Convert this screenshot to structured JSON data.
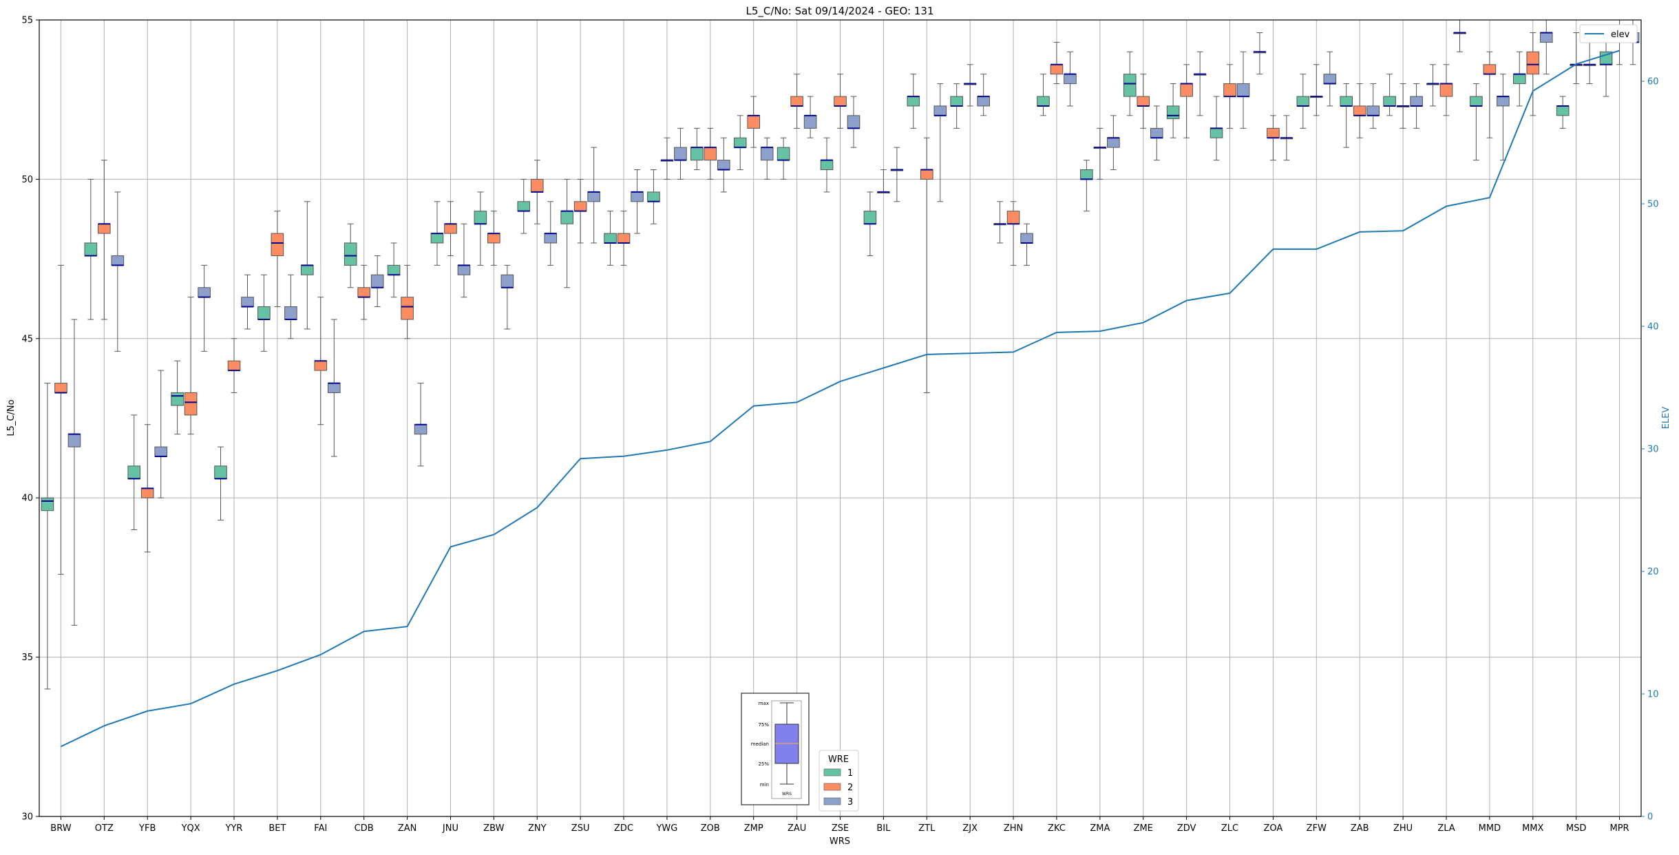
{
  "chart_data": {
    "type": "boxplot",
    "title": "L5_C/No: Sat 09/14/2024 - GEO: 131",
    "xlabel": "WRS",
    "ylabel": "L5_C/No",
    "y2label": "ELEV",
    "ylim": [
      30,
      55
    ],
    "y2lim": [
      0,
      65
    ],
    "yticks": [
      30,
      35,
      40,
      45,
      50,
      55
    ],
    "y2ticks": [
      0,
      10,
      20,
      30,
      40,
      50,
      60
    ],
    "grid": true,
    "categories": [
      "BRW",
      "OTZ",
      "YFB",
      "YQX",
      "YYR",
      "BET",
      "FAI",
      "CDB",
      "ZAN",
      "JNU",
      "ZBW",
      "ZNY",
      "ZSU",
      "ZDC",
      "YWG",
      "ZOB",
      "ZMP",
      "ZAU",
      "ZSE",
      "BIL",
      "ZTL",
      "ZJX",
      "ZHN",
      "ZKC",
      "ZMA",
      "ZME",
      "ZDV",
      "ZLC",
      "ZOA",
      "ZFW",
      "ZAB",
      "ZHU",
      "ZLA",
      "MMD",
      "MMX",
      "MSD",
      "MPR"
    ],
    "elev": [
      5.7,
      7.4,
      8.6,
      9.2,
      10.8,
      11.9,
      13.2,
      15.1,
      15.5,
      22.0,
      23.0,
      25.2,
      29.2,
      29.4,
      29.9,
      30.6,
      33.5,
      33.8,
      35.5,
      36.6,
      37.7,
      37.8,
      37.9,
      39.5,
      39.6,
      40.3,
      42.1,
      42.7,
      46.3,
      46.3,
      47.7,
      47.8,
      49.8,
      50.5,
      59.2,
      61.4,
      62.5
    ],
    "wre_colors": {
      "1": "#66c2a5",
      "2": "#fc8d62",
      "3": "#8da0cb"
    },
    "elev_color": "#1f77b4",
    "legend_entries": [
      {
        "label": "1",
        "color": "#66c2a5"
      },
      {
        "label": "2",
        "color": "#fc8d62"
      },
      {
        "label": "3",
        "color": "#8da0cb"
      }
    ],
    "legend_title": "WRE",
    "elev_legend_label": "elev",
    "inset_legend": {
      "labels": [
        "max",
        "75%",
        "median",
        "25%",
        "min"
      ],
      "xlabel": "WRS"
    },
    "boxes": [
      {
        "cat": "BRW",
        "wre": "1",
        "min": 34.0,
        "q1": 39.6,
        "med": 39.9,
        "q3": 40.0,
        "max": 43.6
      },
      {
        "cat": "BRW",
        "wre": "2",
        "min": 37.6,
        "q1": 43.3,
        "med": 43.3,
        "q3": 43.6,
        "max": 47.3
      },
      {
        "cat": "BRW",
        "wre": "3",
        "min": 36.0,
        "q1": 41.6,
        "med": 42.0,
        "q3": 42.0,
        "max": 45.6
      },
      {
        "cat": "OTZ",
        "wre": "1",
        "min": 45.6,
        "q1": 47.6,
        "med": 47.6,
        "q3": 48.0,
        "max": 50.0
      },
      {
        "cat": "OTZ",
        "wre": "2",
        "min": 45.6,
        "q1": 48.3,
        "med": 48.6,
        "q3": 48.6,
        "max": 50.6
      },
      {
        "cat": "OTZ",
        "wre": "3",
        "min": 44.6,
        "q1": 47.3,
        "med": 47.3,
        "q3": 47.6,
        "max": 49.6
      },
      {
        "cat": "YFB",
        "wre": "1",
        "min": 39.0,
        "q1": 40.6,
        "med": 40.6,
        "q3": 41.0,
        "max": 42.6
      },
      {
        "cat": "YFB",
        "wre": "2",
        "min": 38.3,
        "q1": 40.0,
        "med": 40.3,
        "q3": 40.3,
        "max": 42.3
      },
      {
        "cat": "YFB",
        "wre": "3",
        "min": 40.0,
        "q1": 41.3,
        "med": 41.3,
        "q3": 41.6,
        "max": 44.0
      },
      {
        "cat": "YQX",
        "wre": "1",
        "min": 42.0,
        "q1": 42.9,
        "med": 43.2,
        "q3": 43.3,
        "max": 44.3
      },
      {
        "cat": "YQX",
        "wre": "2",
        "min": 42.0,
        "q1": 42.6,
        "med": 43.0,
        "q3": 43.3,
        "max": 46.3
      },
      {
        "cat": "YQX",
        "wre": "3",
        "min": 44.6,
        "q1": 46.3,
        "med": 46.3,
        "q3": 46.6,
        "max": 47.3
      },
      {
        "cat": "YYR",
        "wre": "1",
        "min": 39.3,
        "q1": 40.6,
        "med": 40.6,
        "q3": 41.0,
        "max": 41.6
      },
      {
        "cat": "YYR",
        "wre": "2",
        "min": 43.3,
        "q1": 44.0,
        "med": 44.0,
        "q3": 44.3,
        "max": 45.0
      },
      {
        "cat": "YYR",
        "wre": "3",
        "min": 45.3,
        "q1": 46.0,
        "med": 46.0,
        "q3": 46.3,
        "max": 47.0
      },
      {
        "cat": "BET",
        "wre": "1",
        "min": 44.6,
        "q1": 45.6,
        "med": 45.6,
        "q3": 46.0,
        "max": 47.0
      },
      {
        "cat": "BET",
        "wre": "2",
        "min": 46.0,
        "q1": 47.6,
        "med": 48.0,
        "q3": 48.3,
        "max": 49.0
      },
      {
        "cat": "BET",
        "wre": "3",
        "min": 45.0,
        "q1": 45.6,
        "med": 45.6,
        "q3": 46.0,
        "max": 47.0
      },
      {
        "cat": "FAI",
        "wre": "1",
        "min": 45.3,
        "q1": 47.0,
        "med": 47.3,
        "q3": 47.3,
        "max": 49.3
      },
      {
        "cat": "FAI",
        "wre": "2",
        "min": 42.3,
        "q1": 44.0,
        "med": 44.3,
        "q3": 44.3,
        "max": 46.3
      },
      {
        "cat": "FAI",
        "wre": "3",
        "min": 41.3,
        "q1": 43.3,
        "med": 43.6,
        "q3": 43.6,
        "max": 45.6
      },
      {
        "cat": "CDB",
        "wre": "1",
        "min": 46.6,
        "q1": 47.3,
        "med": 47.6,
        "q3": 48.0,
        "max": 48.6
      },
      {
        "cat": "CDB",
        "wre": "2",
        "min": 45.6,
        "q1": 46.3,
        "med": 46.3,
        "q3": 46.6,
        "max": 47.3
      },
      {
        "cat": "CDB",
        "wre": "3",
        "min": 46.0,
        "q1": 46.6,
        "med": 46.6,
        "q3": 47.0,
        "max": 47.6
      },
      {
        "cat": "ZAN",
        "wre": "1",
        "min": 46.3,
        "q1": 47.0,
        "med": 47.0,
        "q3": 47.3,
        "max": 48.0
      },
      {
        "cat": "ZAN",
        "wre": "2",
        "min": 45.0,
        "q1": 45.6,
        "med": 46.0,
        "q3": 46.3,
        "max": 47.3
      },
      {
        "cat": "ZAN",
        "wre": "3",
        "min": 41.0,
        "q1": 42.0,
        "med": 42.3,
        "q3": 42.3,
        "max": 43.6
      },
      {
        "cat": "JNU",
        "wre": "1",
        "min": 47.3,
        "q1": 48.0,
        "med": 48.3,
        "q3": 48.3,
        "max": 49.3
      },
      {
        "cat": "JNU",
        "wre": "2",
        "min": 47.6,
        "q1": 48.3,
        "med": 48.6,
        "q3": 48.6,
        "max": 49.3
      },
      {
        "cat": "JNU",
        "wre": "3",
        "min": 46.3,
        "q1": 47.0,
        "med": 47.3,
        "q3": 47.3,
        "max": 48.6
      },
      {
        "cat": "ZBW",
        "wre": "1",
        "min": 47.3,
        "q1": 48.6,
        "med": 48.6,
        "q3": 49.0,
        "max": 49.6
      },
      {
        "cat": "ZBW",
        "wre": "2",
        "min": 47.3,
        "q1": 48.0,
        "med": 48.3,
        "q3": 48.3,
        "max": 49.0
      },
      {
        "cat": "ZBW",
        "wre": "3",
        "min": 45.3,
        "q1": 46.6,
        "med": 46.6,
        "q3": 47.0,
        "max": 47.3
      },
      {
        "cat": "ZNY",
        "wre": "1",
        "min": 48.3,
        "q1": 49.0,
        "med": 49.0,
        "q3": 49.3,
        "max": 50.0
      },
      {
        "cat": "ZNY",
        "wre": "2",
        "min": 48.6,
        "q1": 49.6,
        "med": 49.6,
        "q3": 50.0,
        "max": 50.6
      },
      {
        "cat": "ZNY",
        "wre": "3",
        "min": 47.3,
        "q1": 48.0,
        "med": 48.3,
        "q3": 48.3,
        "max": 49.3
      },
      {
        "cat": "ZSU",
        "wre": "1",
        "min": 46.6,
        "q1": 48.6,
        "med": 49.0,
        "q3": 49.0,
        "max": 50.0
      },
      {
        "cat": "ZSU",
        "wre": "2",
        "min": 48.0,
        "q1": 49.0,
        "med": 49.0,
        "q3": 49.3,
        "max": 50.0
      },
      {
        "cat": "ZSU",
        "wre": "3",
        "min": 48.0,
        "q1": 49.3,
        "med": 49.6,
        "q3": 49.6,
        "max": 51.0
      },
      {
        "cat": "ZDC",
        "wre": "1",
        "min": 47.3,
        "q1": 48.0,
        "med": 48.0,
        "q3": 48.3,
        "max": 49.0
      },
      {
        "cat": "ZDC",
        "wre": "2",
        "min": 47.3,
        "q1": 48.0,
        "med": 48.0,
        "q3": 48.3,
        "max": 49.0
      },
      {
        "cat": "ZDC",
        "wre": "3",
        "min": 48.3,
        "q1": 49.3,
        "med": 49.6,
        "q3": 49.6,
        "max": 50.3
      },
      {
        "cat": "YWG",
        "wre": "1",
        "min": 48.6,
        "q1": 49.3,
        "med": 49.3,
        "q3": 49.6,
        "max": 50.3
      },
      {
        "cat": "YWG",
        "wre": "2",
        "min": 50.0,
        "q1": 50.6,
        "med": 50.6,
        "q3": 50.6,
        "max": 51.3
      },
      {
        "cat": "YWG",
        "wre": "3",
        "min": 50.0,
        "q1": 50.6,
        "med": 50.6,
        "q3": 51.0,
        "max": 51.6
      },
      {
        "cat": "ZOB",
        "wre": "1",
        "min": 50.3,
        "q1": 50.6,
        "med": 51.0,
        "q3": 51.0,
        "max": 51.6
      },
      {
        "cat": "ZOB",
        "wre": "2",
        "min": 50.0,
        "q1": 50.6,
        "med": 51.0,
        "q3": 51.0,
        "max": 51.6
      },
      {
        "cat": "ZOB",
        "wre": "3",
        "min": 49.6,
        "q1": 50.3,
        "med": 50.3,
        "q3": 50.6,
        "max": 51.3
      },
      {
        "cat": "ZMP",
        "wre": "1",
        "min": 50.3,
        "q1": 51.0,
        "med": 51.0,
        "q3": 51.3,
        "max": 52.0
      },
      {
        "cat": "ZMP",
        "wre": "2",
        "min": 51.0,
        "q1": 51.6,
        "med": 52.0,
        "q3": 52.0,
        "max": 52.6
      },
      {
        "cat": "ZMP",
        "wre": "3",
        "min": 50.0,
        "q1": 50.6,
        "med": 51.0,
        "q3": 51.0,
        "max": 51.3
      },
      {
        "cat": "ZAU",
        "wre": "1",
        "min": 50.0,
        "q1": 50.6,
        "med": 50.6,
        "q3": 51.0,
        "max": 51.3
      },
      {
        "cat": "ZAU",
        "wre": "2",
        "min": 51.6,
        "q1": 52.3,
        "med": 52.3,
        "q3": 52.6,
        "max": 53.3
      },
      {
        "cat": "ZAU",
        "wre": "3",
        "min": 51.3,
        "q1": 51.6,
        "med": 52.0,
        "q3": 52.0,
        "max": 52.6
      },
      {
        "cat": "ZSE",
        "wre": "1",
        "min": 49.6,
        "q1": 50.3,
        "med": 50.6,
        "q3": 50.6,
        "max": 51.3
      },
      {
        "cat": "ZSE",
        "wre": "2",
        "min": 51.6,
        "q1": 52.3,
        "med": 52.3,
        "q3": 52.6,
        "max": 53.3
      },
      {
        "cat": "ZSE",
        "wre": "3",
        "min": 51.0,
        "q1": 51.6,
        "med": 51.6,
        "q3": 52.0,
        "max": 52.6
      },
      {
        "cat": "BIL",
        "wre": "1",
        "min": 47.6,
        "q1": 48.6,
        "med": 48.6,
        "q3": 49.0,
        "max": 49.6
      },
      {
        "cat": "BIL",
        "wre": "2",
        "min": 49.6,
        "q1": 49.6,
        "med": 49.6,
        "q3": 49.6,
        "max": 50.3
      },
      {
        "cat": "BIL",
        "wre": "3",
        "min": 49.3,
        "q1": 50.3,
        "med": 50.3,
        "q3": 50.3,
        "max": 51.0
      },
      {
        "cat": "ZTL",
        "wre": "1",
        "min": 51.6,
        "q1": 52.3,
        "med": 52.6,
        "q3": 52.6,
        "max": 53.3
      },
      {
        "cat": "ZTL",
        "wre": "2",
        "min": 43.3,
        "q1": 50.0,
        "med": 50.3,
        "q3": 50.3,
        "max": 51.3
      },
      {
        "cat": "ZTL",
        "wre": "3",
        "min": 49.3,
        "q1": 52.0,
        "med": 52.0,
        "q3": 52.3,
        "max": 53.0
      },
      {
        "cat": "ZJX",
        "wre": "1",
        "min": 51.6,
        "q1": 52.3,
        "med": 52.3,
        "q3": 52.6,
        "max": 53.0
      },
      {
        "cat": "ZJX",
        "wre": "2",
        "min": 52.3,
        "q1": 53.0,
        "med": 53.0,
        "q3": 53.0,
        "max": 53.6
      },
      {
        "cat": "ZJX",
        "wre": "3",
        "min": 52.0,
        "q1": 52.3,
        "med": 52.6,
        "q3": 52.6,
        "max": 53.3
      },
      {
        "cat": "ZHN",
        "wre": "1",
        "min": 48.0,
        "q1": 48.6,
        "med": 48.6,
        "q3": 48.6,
        "max": 49.3
      },
      {
        "cat": "ZHN",
        "wre": "2",
        "min": 47.3,
        "q1": 48.6,
        "med": 48.6,
        "q3": 49.0,
        "max": 49.3
      },
      {
        "cat": "ZHN",
        "wre": "3",
        "min": 47.3,
        "q1": 48.0,
        "med": 48.0,
        "q3": 48.3,
        "max": 48.6
      },
      {
        "cat": "ZKC",
        "wre": "1",
        "min": 52.0,
        "q1": 52.3,
        "med": 52.3,
        "q3": 52.6,
        "max": 53.3
      },
      {
        "cat": "ZKC",
        "wre": "2",
        "min": 53.0,
        "q1": 53.3,
        "med": 53.6,
        "q3": 53.6,
        "max": 54.3
      },
      {
        "cat": "ZKC",
        "wre": "3",
        "min": 52.3,
        "q1": 53.0,
        "med": 53.3,
        "q3": 53.3,
        "max": 54.0
      },
      {
        "cat": "ZMA",
        "wre": "1",
        "min": 49.0,
        "q1": 50.0,
        "med": 50.0,
        "q3": 50.3,
        "max": 50.6
      },
      {
        "cat": "ZMA",
        "wre": "2",
        "min": 50.0,
        "q1": 51.0,
        "med": 51.0,
        "q3": 51.0,
        "max": 51.6
      },
      {
        "cat": "ZMA",
        "wre": "3",
        "min": 50.3,
        "q1": 51.0,
        "med": 51.3,
        "q3": 51.3,
        "max": 52.0
      },
      {
        "cat": "ZME",
        "wre": "1",
        "min": 52.0,
        "q1": 52.6,
        "med": 53.0,
        "q3": 53.3,
        "max": 54.0
      },
      {
        "cat": "ZME",
        "wre": "2",
        "min": 51.6,
        "q1": 52.3,
        "med": 52.3,
        "q3": 52.6,
        "max": 53.3
      },
      {
        "cat": "ZME",
        "wre": "3",
        "min": 50.6,
        "q1": 51.3,
        "med": 51.3,
        "q3": 51.6,
        "max": 52.3
      },
      {
        "cat": "ZDV",
        "wre": "1",
        "min": 51.3,
        "q1": 51.9,
        "med": 52.0,
        "q3": 52.3,
        "max": 53.0
      },
      {
        "cat": "ZDV",
        "wre": "2",
        "min": 51.3,
        "q1": 52.6,
        "med": 53.0,
        "q3": 53.0,
        "max": 53.6
      },
      {
        "cat": "ZDV",
        "wre": "3",
        "min": 52.0,
        "q1": 53.3,
        "med": 53.3,
        "q3": 53.3,
        "max": 54.0
      },
      {
        "cat": "ZLC",
        "wre": "1",
        "min": 50.6,
        "q1": 51.3,
        "med": 51.6,
        "q3": 51.6,
        "max": 52.6
      },
      {
        "cat": "ZLC",
        "wre": "2",
        "min": 51.6,
        "q1": 52.6,
        "med": 52.6,
        "q3": 53.0,
        "max": 53.6
      },
      {
        "cat": "ZLC",
        "wre": "3",
        "min": 51.6,
        "q1": 52.6,
        "med": 52.6,
        "q3": 53.0,
        "max": 54.0
      },
      {
        "cat": "ZOA",
        "wre": "1",
        "min": 53.3,
        "q1": 54.0,
        "med": 54.0,
        "q3": 54.0,
        "max": 54.6
      },
      {
        "cat": "ZOA",
        "wre": "2",
        "min": 50.6,
        "q1": 51.3,
        "med": 51.3,
        "q3": 51.6,
        "max": 52.0
      },
      {
        "cat": "ZOA",
        "wre": "3",
        "min": 50.6,
        "q1": 51.3,
        "med": 51.3,
        "q3": 51.3,
        "max": 52.0
      },
      {
        "cat": "ZFW",
        "wre": "1",
        "min": 51.6,
        "q1": 52.3,
        "med": 52.3,
        "q3": 52.6,
        "max": 53.3
      },
      {
        "cat": "ZFW",
        "wre": "2",
        "min": 52.0,
        "q1": 52.6,
        "med": 52.6,
        "q3": 52.6,
        "max": 53.6
      },
      {
        "cat": "ZFW",
        "wre": "3",
        "min": 52.3,
        "q1": 53.0,
        "med": 53.0,
        "q3": 53.3,
        "max": 54.0
      },
      {
        "cat": "ZAB",
        "wre": "1",
        "min": 51.0,
        "q1": 52.3,
        "med": 52.3,
        "q3": 52.6,
        "max": 53.0
      },
      {
        "cat": "ZAB",
        "wre": "2",
        "min": 51.3,
        "q1": 52.0,
        "med": 52.0,
        "q3": 52.3,
        "max": 53.0
      },
      {
        "cat": "ZAB",
        "wre": "3",
        "min": 51.6,
        "q1": 52.0,
        "med": 52.0,
        "q3": 52.3,
        "max": 53.0
      },
      {
        "cat": "ZHU",
        "wre": "1",
        "min": 52.0,
        "q1": 52.3,
        "med": 52.3,
        "q3": 52.6,
        "max": 53.3
      },
      {
        "cat": "ZHU",
        "wre": "2",
        "min": 51.6,
        "q1": 52.3,
        "med": 52.3,
        "q3": 52.3,
        "max": 53.0
      },
      {
        "cat": "ZHU",
        "wre": "3",
        "min": 51.6,
        "q1": 52.3,
        "med": 52.3,
        "q3": 52.6,
        "max": 53.0
      },
      {
        "cat": "ZLA",
        "wre": "1",
        "min": 52.3,
        "q1": 53.0,
        "med": 53.0,
        "q3": 53.0,
        "max": 53.6
      },
      {
        "cat": "ZLA",
        "wre": "2",
        "min": 52.0,
        "q1": 52.6,
        "med": 53.0,
        "q3": 53.0,
        "max": 53.6
      },
      {
        "cat": "ZLA",
        "wre": "3",
        "min": 54.0,
        "q1": 54.6,
        "med": 54.6,
        "q3": 54.6,
        "max": 55.0
      },
      {
        "cat": "MMD",
        "wre": "1",
        "min": 50.6,
        "q1": 52.3,
        "med": 52.3,
        "q3": 52.6,
        "max": 53.0
      },
      {
        "cat": "MMD",
        "wre": "2",
        "min": 51.3,
        "q1": 53.3,
        "med": 53.3,
        "q3": 53.6,
        "max": 54.0
      },
      {
        "cat": "MMD",
        "wre": "3",
        "min": 50.6,
        "q1": 52.3,
        "med": 52.6,
        "q3": 52.6,
        "max": 53.3
      },
      {
        "cat": "MMX",
        "wre": "1",
        "min": 52.3,
        "q1": 53.0,
        "med": 53.3,
        "q3": 53.3,
        "max": 54.0
      },
      {
        "cat": "MMX",
        "wre": "2",
        "min": 52.0,
        "q1": 53.3,
        "med": 53.6,
        "q3": 54.0,
        "max": 54.6
      },
      {
        "cat": "MMX",
        "wre": "3",
        "min": 53.3,
        "q1": 54.3,
        "med": 54.6,
        "q3": 54.6,
        "max": 55.0
      },
      {
        "cat": "MSD",
        "wre": "1",
        "min": 51.6,
        "q1": 52.0,
        "med": 52.3,
        "q3": 52.3,
        "max": 52.6
      },
      {
        "cat": "MSD",
        "wre": "2",
        "min": 53.0,
        "q1": 53.6,
        "med": 53.6,
        "q3": 53.6,
        "max": 54.6
      },
      {
        "cat": "MSD",
        "wre": "3",
        "min": 53.0,
        "q1": 53.6,
        "med": 53.6,
        "q3": 53.6,
        "max": 54.3
      },
      {
        "cat": "MPR",
        "wre": "1",
        "min": 52.6,
        "q1": 53.6,
        "med": 53.6,
        "q3": 54.0,
        "max": 54.3
      },
      {
        "cat": "MPR",
        "wre": "2",
        "min": 53.6,
        "q1": 54.3,
        "med": 54.3,
        "q3": 54.6,
        "max": 55.0
      },
      {
        "cat": "MPR",
        "wre": "3",
        "min": 53.6,
        "q1": 54.3,
        "med": 54.3,
        "q3": 54.6,
        "max": 55.0
      }
    ]
  }
}
